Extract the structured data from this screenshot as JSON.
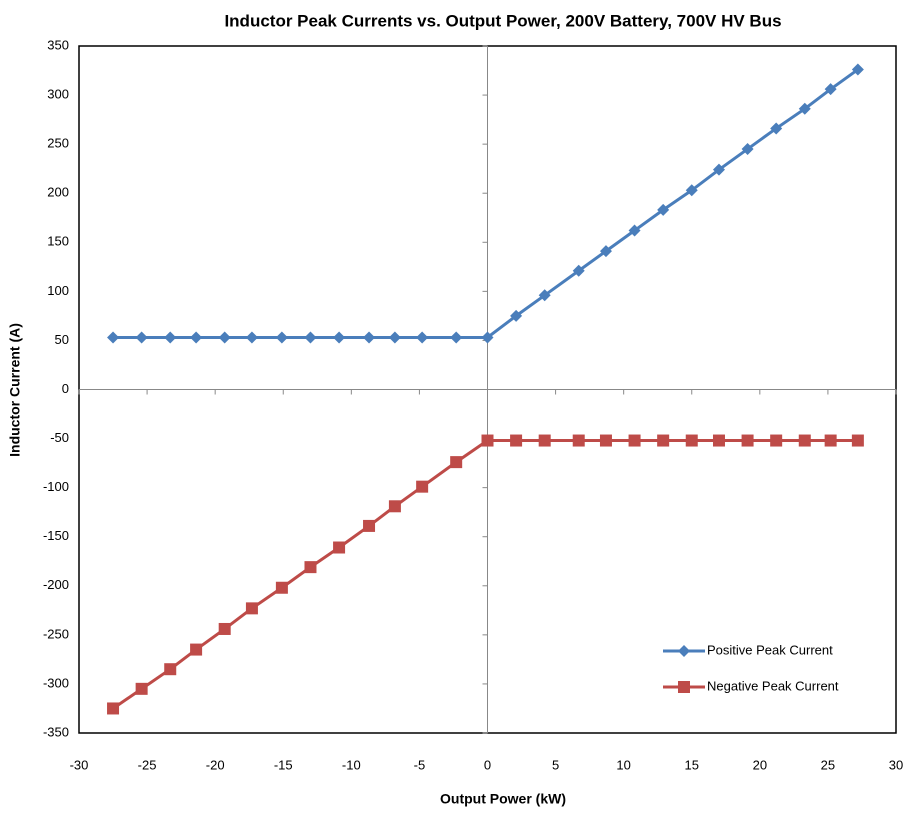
{
  "chart_data": {
    "type": "line",
    "title": "Inductor Peak Currents vs. Output Power, 200V Battery, 700V HV Bus",
    "x_label": "Output Power (kW)",
    "y_label": "Inductor Current (A)",
    "x": [
      -27.5,
      -25.4,
      -23.3,
      -21.4,
      -19.3,
      -17.3,
      -15.1,
      -13.0,
      -10.9,
      -8.7,
      -6.8,
      -4.8,
      -2.3,
      0,
      2.1,
      4.2,
      6.7,
      8.7,
      10.8,
      12.9,
      15.0,
      17.0,
      19.1,
      21.2,
      23.3,
      25.2,
      27.2
    ],
    "series": [
      {
        "name": "Positive Peak Current",
        "color": "#4a7ebb",
        "marker": "diamond",
        "values": [
          53,
          53,
          53,
          53,
          53,
          53,
          53,
          53,
          53,
          53,
          53,
          53,
          53,
          53,
          75,
          96,
          121,
          141,
          162,
          183,
          203,
          224,
          245,
          266,
          286,
          306,
          326
        ]
      },
      {
        "name": "Negative Peak Current",
        "color": "#be4b48",
        "marker": "square",
        "values": [
          -325,
          -305,
          -285,
          -265,
          -244,
          -223,
          -202,
          -181,
          -161,
          -139,
          -119,
          -99,
          -74,
          -52,
          -52,
          -52,
          -52,
          -52,
          -52,
          -52,
          -52,
          -52,
          -52,
          -52,
          -52,
          -52,
          -52
        ]
      }
    ],
    "xlim": [
      -30,
      30
    ],
    "xticks": [
      -30,
      -25,
      -20,
      -15,
      -10,
      -5,
      0,
      5,
      10,
      15,
      20,
      25,
      30
    ],
    "ylim": [
      -350,
      350
    ],
    "yticks": [
      -350,
      -300,
      -250,
      -200,
      -150,
      -100,
      -50,
      0,
      50,
      100,
      150,
      200,
      250,
      300,
      350
    ],
    "grid": false,
    "legend": "lower right"
  }
}
